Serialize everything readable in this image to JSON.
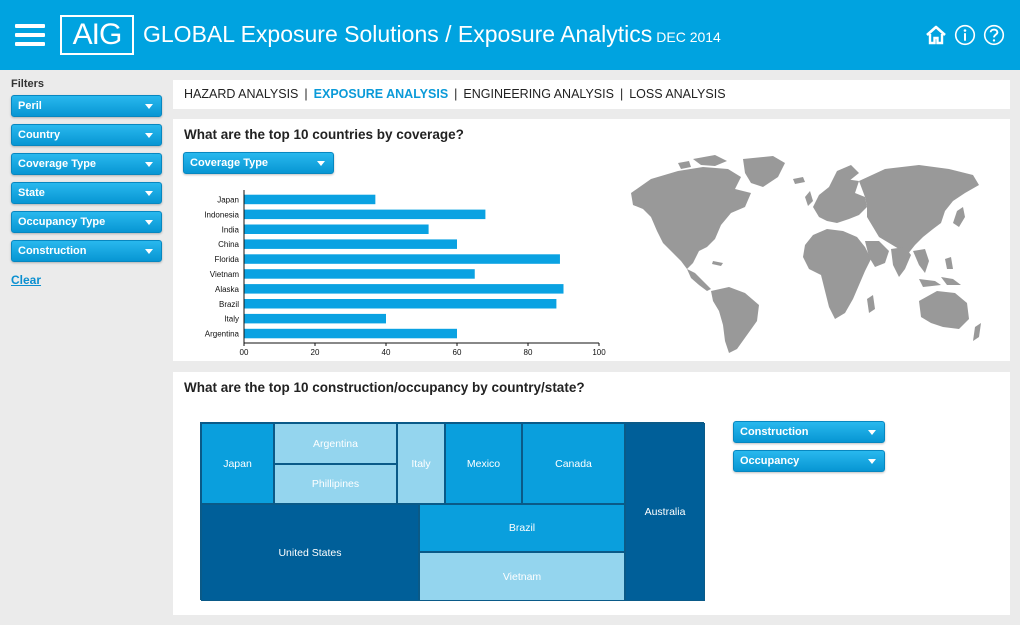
{
  "header": {
    "logo_text": "AIG",
    "title": "GLOBAL Exposure Solutions / Exposure Analytics",
    "date": "DEC 2014",
    "bg_color": "#00a3e0"
  },
  "sidebar": {
    "heading": "Filters",
    "filters": [
      {
        "label": "Peril"
      },
      {
        "label": "Country"
      },
      {
        "label": "Coverage Type"
      },
      {
        "label": "State"
      },
      {
        "label": "Occupancy Type"
      },
      {
        "label": "Construction"
      }
    ],
    "clear_label": "Clear"
  },
  "nav": {
    "tabs": [
      {
        "label": "HAZARD ANALYSIS",
        "active": false
      },
      {
        "label": "EXPOSURE ANALYSIS",
        "active": true
      },
      {
        "label": "ENGINEERING ANALYSIS",
        "active": false
      },
      {
        "label": "LOSS ANALYSIS",
        "active": false
      }
    ],
    "separator": "|"
  },
  "coverage_panel": {
    "title": "What are the top 10 countries by coverage?",
    "dropdown_label": "Coverage Type"
  },
  "treemap_panel": {
    "title": "What are the top 10 construction/occupancy by country/state?",
    "construction_dropdown": "Construction",
    "occupancy_dropdown": "Occupancy",
    "cells": [
      {
        "label": "Japan",
        "shade": "mid"
      },
      {
        "label": "Argentina",
        "shade": "light"
      },
      {
        "label": "Phillipines",
        "shade": "light"
      },
      {
        "label": "Italy",
        "shade": "light"
      },
      {
        "label": "Mexico",
        "shade": "mid"
      },
      {
        "label": "Canada",
        "shade": "mid"
      },
      {
        "label": "Australia",
        "shade": "dark"
      },
      {
        "label": "United States",
        "shade": "dark"
      },
      {
        "label": "Brazil",
        "shade": "mid"
      },
      {
        "label": "Vietnam",
        "shade": "light"
      }
    ],
    "colors": {
      "light": "#94d5ee",
      "mid": "#0a9fdd",
      "dark": "#005f99"
    }
  },
  "chart_data": {
    "type": "bar",
    "orientation": "horizontal",
    "categories": [
      "Japan",
      "Indonesia",
      "India",
      "China",
      "Florida",
      "Vietnam",
      "Alaska",
      "Brazil",
      "Italy",
      "Argentina"
    ],
    "values": [
      37,
      68,
      52,
      60,
      89,
      65,
      90,
      88,
      40,
      60
    ],
    "xlim": [
      0,
      100
    ],
    "x_ticks": [
      "00",
      "20",
      "40",
      "60",
      "80",
      "100"
    ],
    "x_tick_values": [
      0,
      20,
      40,
      60,
      80,
      100
    ],
    "bar_color": "#0aa2e2",
    "grid": false
  },
  "icons": {
    "menu": "hamburger-menu-icon",
    "home": "home-icon",
    "info": "info-icon",
    "help": "help-icon",
    "map": "world-map"
  }
}
